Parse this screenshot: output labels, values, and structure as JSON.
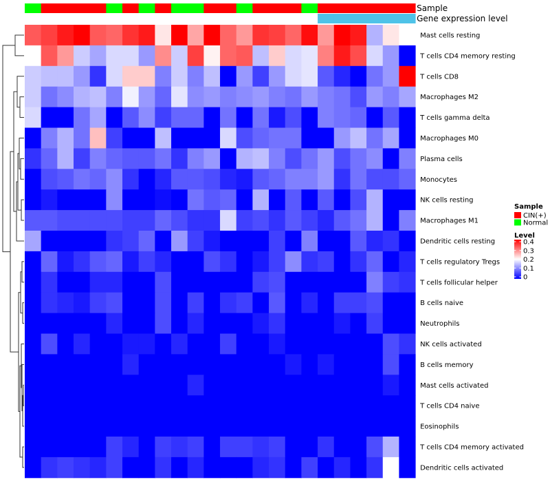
{
  "chart_data": {
    "type": "heatmap",
    "annotation_tracks": [
      {
        "name": "Sample",
        "values": [
          "Normal",
          "CIN(+)",
          "CIN(+)",
          "CIN(+)",
          "CIN(+)",
          "Normal",
          "CIN(+)",
          "Normal",
          "CIN(+)",
          "Normal",
          "Normal",
          "CIN(+)",
          "CIN(+)",
          "Normal",
          "CIN(+)",
          "CIN(+)",
          "CIN(+)",
          "Normal",
          "CIN(+)",
          "CIN(+)",
          "CIN(+)",
          "CIN(+)",
          "CIN(+)",
          "CIN(+)"
        ]
      },
      {
        "name": "Gene expression level",
        "values": [
          "low",
          "low",
          "low",
          "low",
          "low",
          "low",
          "low",
          "low",
          "low",
          "low",
          "low",
          "low",
          "low",
          "low",
          "low",
          "low",
          "low",
          "low",
          "high",
          "high",
          "high",
          "high",
          "high",
          "high"
        ]
      }
    ],
    "rows": [
      "Mast cells resting",
      "T cells CD4 memory resting",
      "T cells CD8",
      "Macrophages M2",
      "T cells gamma delta",
      "Macrophages M0",
      "Plasma cells",
      "Monocytes",
      "NK cells resting",
      "Macrophages M1",
      "Dendritic cells resting",
      "T cells regulatory  Tregs",
      "T cells follicular helper",
      "B cells naive",
      "Neutrophils",
      "NK cells activated",
      "B cells memory",
      "Mast cells activated",
      "T cells CD4 naive",
      "Eosinophils",
      "T cells CD4 memory activated",
      "Dendritic cells activated"
    ],
    "values": [
      [
        0.33,
        0.35,
        0.38,
        0.4,
        0.33,
        0.32,
        0.36,
        0.38,
        0.22,
        0.4,
        0.27,
        0.4,
        0.32,
        0.28,
        0.36,
        0.35,
        0.32,
        0.39,
        0.28,
        0.4,
        0.38,
        0.14,
        0.22,
        0.2
      ],
      [
        0.2,
        0.33,
        0.28,
        0.16,
        0.13,
        0.17,
        0.17,
        0.12,
        0.29,
        0.16,
        0.35,
        0.21,
        0.32,
        0.33,
        0.15,
        0.24,
        0.17,
        0.18,
        0.3,
        0.38,
        0.34,
        0.17,
        0.12,
        0.0
      ],
      [
        0.16,
        0.15,
        0.15,
        0.12,
        0.04,
        0.17,
        0.24,
        0.24,
        0.1,
        0.16,
        0.1,
        0.15,
        0.0,
        0.12,
        0.05,
        0.12,
        0.17,
        0.18,
        0.07,
        0.03,
        0.0,
        0.09,
        0.12,
        0.4
      ],
      [
        0.16,
        0.09,
        0.11,
        0.14,
        0.15,
        0.1,
        0.19,
        0.12,
        0.08,
        0.18,
        0.11,
        0.12,
        0.1,
        0.11,
        0.12,
        0.1,
        0.09,
        0.12,
        0.1,
        0.09,
        0.06,
        0.12,
        0.1,
        0.13
      ],
      [
        0.17,
        0.0,
        0.0,
        0.09,
        0.13,
        0.0,
        0.07,
        0.11,
        0.05,
        0.08,
        0.08,
        0.0,
        0.09,
        0.0,
        0.09,
        0.02,
        0.06,
        0.0,
        0.1,
        0.09,
        0.08,
        0.0,
        0.07,
        0.0
      ],
      [
        0.0,
        0.1,
        0.14,
        0.09,
        0.25,
        0.05,
        0.0,
        0.0,
        0.15,
        0.0,
        0.0,
        0.0,
        0.17,
        0.06,
        0.08,
        0.09,
        0.09,
        0.0,
        0.0,
        0.12,
        0.15,
        0.09,
        0.13,
        0.0
      ],
      [
        0.04,
        0.08,
        0.14,
        0.05,
        0.1,
        0.08,
        0.07,
        0.07,
        0.09,
        0.04,
        0.1,
        0.12,
        0.0,
        0.14,
        0.15,
        0.1,
        0.06,
        0.09,
        0.12,
        0.06,
        0.09,
        0.11,
        0.0,
        0.1
      ],
      [
        0.0,
        0.06,
        0.07,
        0.09,
        0.08,
        0.11,
        0.04,
        0.0,
        0.03,
        0.07,
        0.07,
        0.06,
        0.03,
        0.02,
        0.07,
        0.08,
        0.1,
        0.1,
        0.12,
        0.04,
        0.09,
        0.06,
        0.06,
        0.08
      ],
      [
        0.0,
        0.02,
        0.0,
        0.0,
        0.0,
        0.11,
        0.0,
        0.0,
        0.01,
        0.0,
        0.09,
        0.07,
        0.08,
        0.0,
        0.14,
        0.0,
        0.07,
        0.0,
        0.07,
        0.0,
        0.06,
        0.14,
        0.0,
        0.0
      ],
      [
        0.07,
        0.07,
        0.06,
        0.06,
        0.06,
        0.06,
        0.05,
        0.05,
        0.08,
        0.06,
        0.04,
        0.04,
        0.17,
        0.05,
        0.06,
        0.04,
        0.07,
        0.05,
        0.03,
        0.07,
        0.09,
        0.14,
        0.0,
        0.1
      ],
      [
        0.13,
        0.0,
        0.0,
        0.0,
        0.0,
        0.04,
        0.05,
        0.08,
        0.0,
        0.12,
        0.05,
        0.02,
        0.0,
        0.0,
        0.0,
        0.05,
        0.0,
        0.1,
        0.0,
        0.0,
        0.07,
        0.03,
        0.04,
        0.0
      ],
      [
        0.0,
        0.08,
        0.02,
        0.04,
        0.07,
        0.08,
        0.02,
        0.05,
        0.03,
        0.0,
        0.0,
        0.06,
        0.04,
        0.0,
        0.02,
        0.05,
        0.11,
        0.04,
        0.05,
        0.0,
        0.04,
        0.08,
        0.0,
        0.03
      ],
      [
        0.0,
        0.04,
        0.0,
        0.0,
        0.03,
        0.03,
        0.0,
        0.0,
        0.06,
        0.0,
        0.0,
        0.0,
        0.0,
        0.0,
        0.05,
        0.06,
        0.0,
        0.0,
        0.0,
        0.0,
        0.0,
        0.1,
        0.05,
        0.04
      ],
      [
        0.0,
        0.04,
        0.03,
        0.02,
        0.05,
        0.06,
        0.0,
        0.0,
        0.06,
        0.0,
        0.05,
        0.0,
        0.04,
        0.05,
        0.0,
        0.07,
        0.0,
        0.03,
        0.0,
        0.05,
        0.05,
        0.06,
        0.0,
        0.0
      ],
      [
        0.0,
        0.0,
        0.0,
        0.0,
        0.0,
        0.03,
        0.0,
        0.0,
        0.06,
        0.0,
        0.03,
        0.0,
        0.0,
        0.0,
        0.02,
        0.04,
        0.0,
        0.0,
        0.0,
        0.02,
        0.0,
        0.05,
        0.0,
        0.0
      ],
      [
        0.0,
        0.06,
        0.0,
        0.03,
        0.0,
        0.0,
        0.02,
        0.02,
        0.0,
        0.03,
        0.0,
        0.0,
        0.05,
        0.0,
        0.0,
        0.02,
        0.0,
        0.0,
        0.0,
        0.0,
        0.0,
        0.0,
        0.06,
        0.04
      ],
      [
        0.0,
        0.0,
        0.0,
        0.0,
        0.0,
        0.0,
        0.03,
        0.0,
        0.0,
        0.0,
        0.0,
        0.0,
        0.0,
        0.0,
        0.0,
        0.0,
        0.02,
        0.0,
        0.02,
        0.0,
        0.0,
        0.0,
        0.06,
        0.0
      ],
      [
        0.0,
        0.0,
        0.0,
        0.0,
        0.0,
        0.0,
        0.0,
        0.0,
        0.0,
        0.0,
        0.03,
        0.0,
        0.0,
        0.0,
        0.0,
        0.0,
        0.0,
        0.0,
        0.0,
        0.0,
        0.0,
        0.0,
        0.02,
        0.0
      ],
      [
        0.0,
        0.0,
        0.0,
        0.0,
        0.0,
        0.0,
        0.0,
        0.0,
        0.0,
        0.0,
        0.0,
        0.0,
        0.0,
        0.0,
        0.0,
        0.0,
        0.0,
        0.0,
        0.0,
        0.0,
        0.0,
        0.0,
        0.0,
        0.0
      ],
      [
        0.0,
        0.0,
        0.0,
        0.0,
        0.0,
        0.0,
        0.0,
        0.0,
        0.0,
        0.0,
        0.0,
        0.0,
        0.0,
        0.0,
        0.0,
        0.0,
        0.0,
        0.0,
        0.0,
        0.0,
        0.0,
        0.0,
        0.0,
        0.0
      ],
      [
        0.0,
        0.0,
        0.0,
        0.0,
        0.0,
        0.05,
        0.03,
        0.0,
        0.05,
        0.04,
        0.05,
        0.0,
        0.05,
        0.05,
        0.04,
        0.05,
        0.0,
        0.0,
        0.04,
        0.0,
        0.0,
        0.06,
        0.14,
        0.0
      ],
      [
        0.0,
        0.04,
        0.05,
        0.04,
        0.03,
        0.05,
        0.0,
        0.0,
        0.04,
        0.0,
        0.03,
        0.0,
        0.0,
        0.0,
        0.03,
        0.04,
        0.0,
        0.05,
        0.0,
        0.03,
        0.0,
        0.04,
        0.2,
        0.0
      ]
    ],
    "legend": {
      "sample_title": "Sample",
      "sample_entries": [
        {
          "label": "CIN(+)",
          "color": "#ff0000"
        },
        {
          "label": "Normal",
          "color": "#00ff00"
        }
      ],
      "level_title": "Level",
      "level_ticks": [
        "0.4",
        "0.3",
        "0.2",
        "0.1",
        "0"
      ],
      "level_range": [
        0,
        0.4
      ],
      "placement": "right"
    },
    "colors": {
      "low": "#0000ff",
      "mid": "#ffffff",
      "high": "#ff0000",
      "track_low": "#ffffff",
      "track_high": "#4fc3e8"
    },
    "track_labels": [
      "Sample",
      "Gene expression level"
    ],
    "dendrogram": "rows clustered (left)"
  }
}
